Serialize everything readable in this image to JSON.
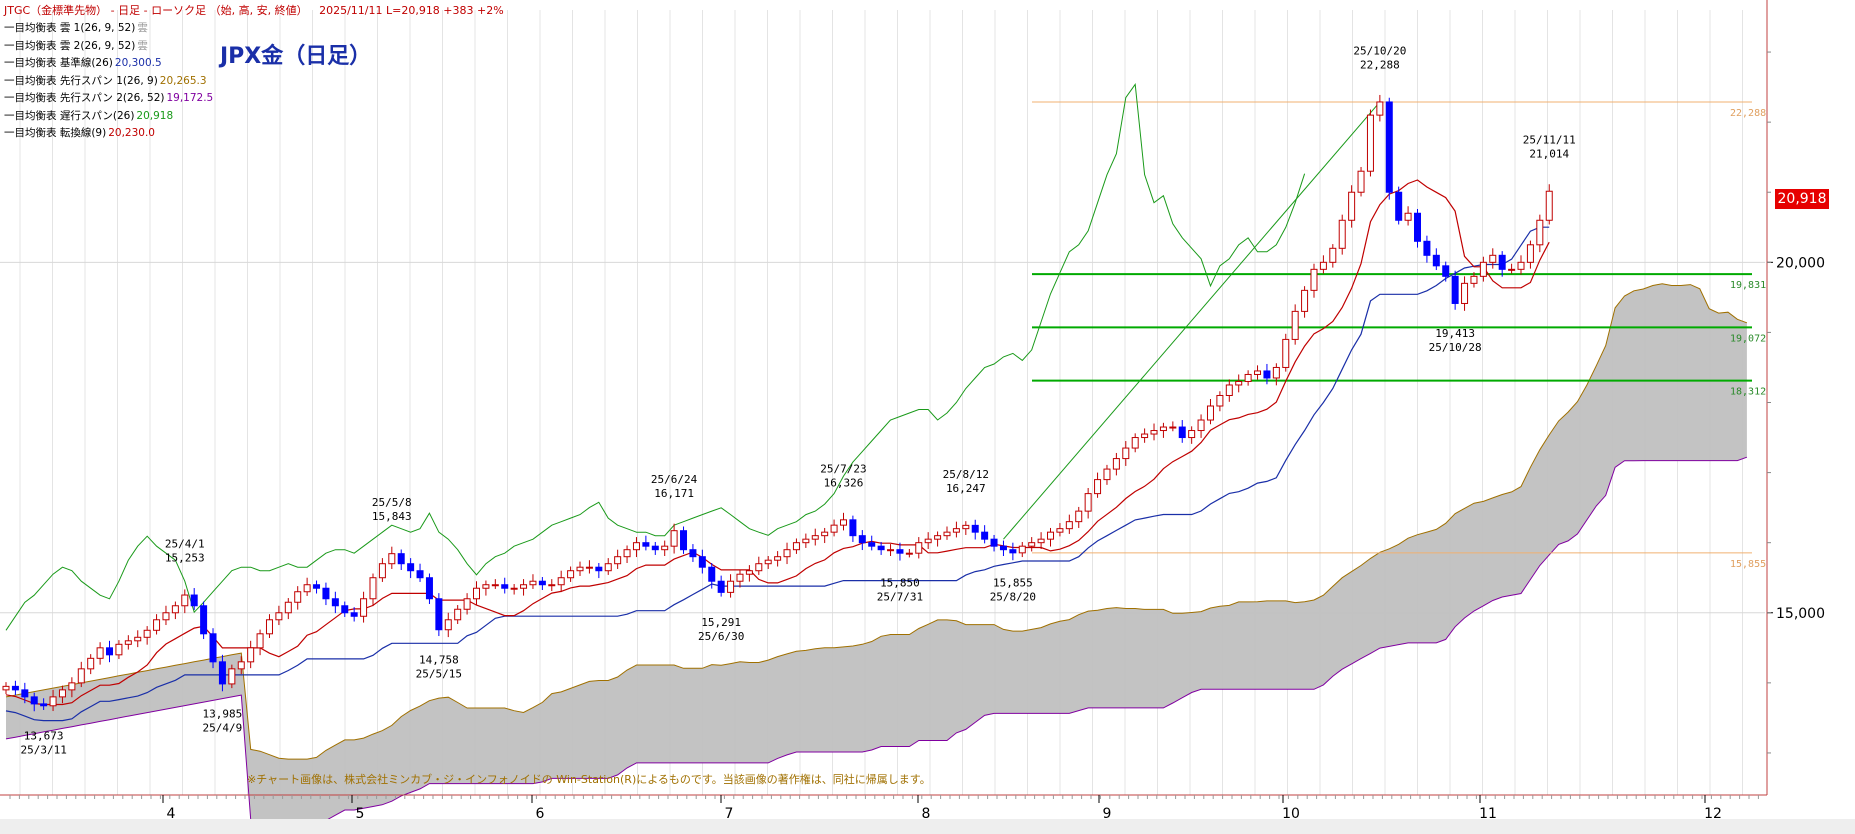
{
  "header": {
    "title": "JTGC（金標準先物） - 日足 - ローソク足 （始, 高, 安, 終値）",
    "status": "2025/11/11  L=20,918 +383  +2%"
  },
  "legend": [
    {
      "label": "一目均衡表 雲 1(26, 9, 52)",
      "value": "雲",
      "color": "#999999"
    },
    {
      "label": "一目均衡表 雲 2(26, 9, 52)",
      "value": "雲",
      "color": "#999999"
    },
    {
      "label": "一目均衡表 基準線(26)",
      "value": "20,300.5",
      "color": "#1a2fa8"
    },
    {
      "label": "一目均衡表 先行スパン 1(26, 9)",
      "value": "20,265.3",
      "color": "#a07000"
    },
    {
      "label": "一目均衡表 先行スパン 2(26, 52)",
      "value": "19,172.5",
      "color": "#8000a0"
    },
    {
      "label": "一目均衡表 遅行スパン(26)",
      "value": "20,918",
      "color": "#1a9a1a"
    },
    {
      "label": "一目均衡表 転換線(9)",
      "value": "20,230.0",
      "color": "#c00000"
    }
  ],
  "chart_title": "JPX金（日足）",
  "credit": "※チャート画像は、株式会社ミンカブ・ジ・インフォノイドの Win-Station(R)によるものです。当該画像の著作権は、同社に帰属します。",
  "price_badge": "20,918",
  "colors": {
    "up_candle": "#c00000",
    "down_candle": "#0000ff",
    "kijun": "#1a2fa8",
    "tenkan": "#c00000",
    "chikou": "#1a9a1a",
    "cloud_fill": "#c0c0c0",
    "span1": "#a07000",
    "span2": "#8000a0",
    "hline_green": "#00aa00",
    "hline_orange": "#f0b070"
  },
  "chart_data": {
    "type": "candlestick",
    "x_axis": {
      "tick_labels": [
        "4",
        "5",
        "6",
        "7",
        "8",
        "9",
        "10",
        "11",
        "12"
      ]
    },
    "y_axis": {
      "tick_labels": [
        "20,000",
        "15,000"
      ],
      "tick_values": [
        20000,
        15000
      ],
      "ylim": [
        12400,
        23600
      ]
    },
    "horizontal_lines": [
      {
        "value": 22288,
        "label": "22,288",
        "style": "orange"
      },
      {
        "value": 19831,
        "label": "19,831",
        "style": "green"
      },
      {
        "value": 19072,
        "label": "19,072",
        "style": "green"
      },
      {
        "value": 18312,
        "label": "18,312",
        "style": "green"
      },
      {
        "value": 15855,
        "label": "15,855",
        "style": "orange"
      }
    ],
    "annotations": [
      {
        "date": "25/3/11",
        "price": "13,673",
        "pos": "below"
      },
      {
        "date": "25/4/1",
        "price": "15,253",
        "pos": "above"
      },
      {
        "date": "25/4/9",
        "price": "13,985",
        "pos": "below"
      },
      {
        "date": "25/5/8",
        "price": "15,843",
        "pos": "above"
      },
      {
        "date": "25/5/15",
        "price": "14,758",
        "pos": "below"
      },
      {
        "date": "25/6/24",
        "price": "16,171",
        "pos": "above"
      },
      {
        "date": "25/6/30",
        "price": "15,291",
        "pos": "below"
      },
      {
        "date": "25/7/23",
        "price": "16,326",
        "pos": "above"
      },
      {
        "date": "25/7/31",
        "price": "15,850",
        "pos": "below"
      },
      {
        "date": "25/8/12",
        "price": "16,247",
        "pos": "above"
      },
      {
        "date": "25/8/20",
        "price": "15,855",
        "pos": "below"
      },
      {
        "date": "25/10/20",
        "price": "22,288",
        "pos": "above"
      },
      {
        "date": "25/10/28",
        "price": "19,413",
        "pos": "below"
      },
      {
        "date": "25/11/11",
        "price": "21,014",
        "pos": "above"
      }
    ],
    "price_path": [
      [
        0,
        13950
      ],
      [
        1,
        13900
      ],
      [
        2,
        13800
      ],
      [
        3,
        13700
      ],
      [
        4,
        13673
      ],
      [
        5,
        13800
      ],
      [
        6,
        13900
      ],
      [
        7,
        14000
      ],
      [
        8,
        14200
      ],
      [
        9,
        14350
      ],
      [
        10,
        14500
      ],
      [
        11,
        14400
      ],
      [
        12,
        14550
      ],
      [
        13,
        14600
      ],
      [
        14,
        14650
      ],
      [
        15,
        14750
      ],
      [
        16,
        14900
      ],
      [
        17,
        15000
      ],
      [
        18,
        15100
      ],
      [
        19,
        15253
      ],
      [
        20,
        15100
      ],
      [
        21,
        14700
      ],
      [
        22,
        14300
      ],
      [
        23,
        13985
      ],
      [
        24,
        14200
      ],
      [
        25,
        14300
      ],
      [
        26,
        14500
      ],
      [
        27,
        14700
      ],
      [
        28,
        14900
      ],
      [
        29,
        15000
      ],
      [
        30,
        15150
      ],
      [
        31,
        15300
      ],
      [
        32,
        15400
      ],
      [
        33,
        15350
      ],
      [
        34,
        15200
      ],
      [
        35,
        15100
      ],
      [
        36,
        15000
      ],
      [
        37,
        14950
      ],
      [
        38,
        15200
      ],
      [
        39,
        15500
      ],
      [
        40,
        15700
      ],
      [
        41,
        15843
      ],
      [
        42,
        15700
      ],
      [
        43,
        15600
      ],
      [
        44,
        15500
      ],
      [
        45,
        15200
      ],
      [
        46,
        14758
      ],
      [
        47,
        14900
      ],
      [
        48,
        15050
      ],
      [
        49,
        15200
      ],
      [
        50,
        15350
      ],
      [
        51,
        15400
      ],
      [
        52,
        15400
      ],
      [
        53,
        15350
      ],
      [
        54,
        15350
      ],
      [
        55,
        15400
      ],
      [
        56,
        15450
      ],
      [
        57,
        15400
      ],
      [
        58,
        15400
      ],
      [
        59,
        15500
      ],
      [
        60,
        15600
      ],
      [
        61,
        15650
      ],
      [
        62,
        15650
      ],
      [
        63,
        15600
      ],
      [
        64,
        15700
      ],
      [
        65,
        15800
      ],
      [
        66,
        15900
      ],
      [
        67,
        16000
      ],
      [
        68,
        15950
      ],
      [
        69,
        15900
      ],
      [
        70,
        15950
      ],
      [
        71,
        16171
      ],
      [
        72,
        15900
      ],
      [
        73,
        15800
      ],
      [
        74,
        15650
      ],
      [
        75,
        15450
      ],
      [
        76,
        15291
      ],
      [
        77,
        15450
      ],
      [
        78,
        15550
      ],
      [
        79,
        15600
      ],
      [
        80,
        15700
      ],
      [
        81,
        15750
      ],
      [
        82,
        15800
      ],
      [
        83,
        15900
      ],
      [
        84,
        16000
      ],
      [
        85,
        16050
      ],
      [
        86,
        16100
      ],
      [
        87,
        16150
      ],
      [
        88,
        16250
      ],
      [
        89,
        16326
      ],
      [
        90,
        16100
      ],
      [
        91,
        16000
      ],
      [
        92,
        15950
      ],
      [
        93,
        15900
      ],
      [
        94,
        15900
      ],
      [
        95,
        15850
      ],
      [
        96,
        15850
      ],
      [
        97,
        16000
      ],
      [
        98,
        16050
      ],
      [
        99,
        16100
      ],
      [
        100,
        16150
      ],
      [
        101,
        16200
      ],
      [
        102,
        16247
      ],
      [
        103,
        16150
      ],
      [
        104,
        16050
      ],
      [
        105,
        15950
      ],
      [
        106,
        15900
      ],
      [
        107,
        15855
      ],
      [
        108,
        15950
      ],
      [
        109,
        16000
      ],
      [
        110,
        16050
      ],
      [
        111,
        16150
      ],
      [
        112,
        16200
      ],
      [
        113,
        16300
      ],
      [
        114,
        16450
      ],
      [
        115,
        16700
      ],
      [
        116,
        16900
      ],
      [
        117,
        17050
      ],
      [
        118,
        17200
      ],
      [
        119,
        17350
      ],
      [
        120,
        17500
      ],
      [
        121,
        17550
      ],
      [
        122,
        17600
      ],
      [
        123,
        17650
      ],
      [
        124,
        17650
      ],
      [
        125,
        17500
      ],
      [
        126,
        17600
      ],
      [
        127,
        17750
      ],
      [
        128,
        17950
      ],
      [
        129,
        18100
      ],
      [
        130,
        18250
      ],
      [
        131,
        18300
      ],
      [
        132,
        18400
      ],
      [
        133,
        18450
      ],
      [
        134,
        18350
      ],
      [
        135,
        18500
      ],
      [
        136,
        18900
      ],
      [
        137,
        19300
      ],
      [
        138,
        19600
      ],
      [
        139,
        19900
      ],
      [
        140,
        20000
      ],
      [
        141,
        20200
      ],
      [
        142,
        20600
      ],
      [
        143,
        21000
      ],
      [
        144,
        21300
      ],
      [
        145,
        22100
      ],
      [
        146,
        22288
      ],
      [
        147,
        21000
      ],
      [
        148,
        20600
      ],
      [
        149,
        20700
      ],
      [
        150,
        20300
      ],
      [
        151,
        20100
      ],
      [
        152,
        19950
      ],
      [
        153,
        19800
      ],
      [
        154,
        19413
      ],
      [
        155,
        19700
      ],
      [
        156,
        19800
      ],
      [
        157,
        20000
      ],
      [
        158,
        20100
      ],
      [
        159,
        19900
      ],
      [
        160,
        19900
      ],
      [
        161,
        20000
      ],
      [
        162,
        20250
      ],
      [
        163,
        20600
      ],
      [
        164,
        21014
      ]
    ],
    "series": [
      {
        "name": "一目均衡表 基準線(26)"
      },
      {
        "name": "一目均衡表 転換線(9)"
      },
      {
        "name": "一目均衡表 遅行スパン(26)"
      },
      {
        "name": "一目均衡表 先行スパン 1(26, 9)"
      },
      {
        "name": "一目均衡表 先行スパン 2(26, 52)"
      }
    ]
  }
}
